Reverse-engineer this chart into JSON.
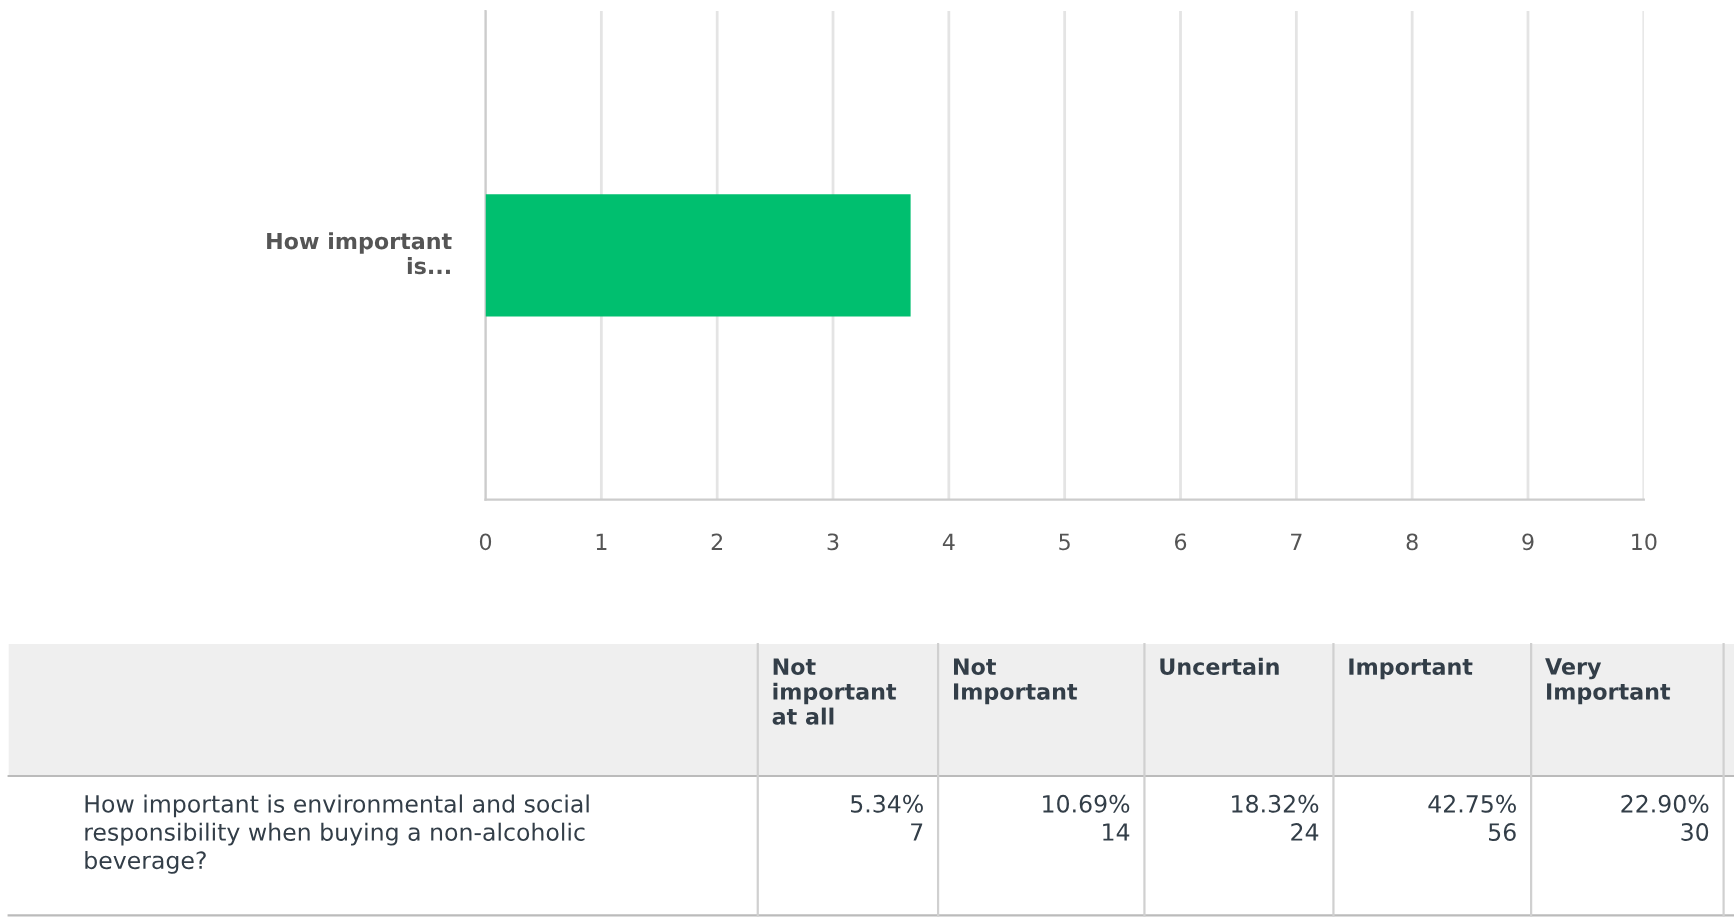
{
  "chart_data": {
    "type": "bar",
    "orientation": "horizontal",
    "categories": [
      "How important is..."
    ],
    "series": [
      {
        "color": "#00bf6f",
        "values": [
          3.67
        ]
      }
    ],
    "xlim": [
      0,
      10
    ],
    "xticks": [
      0,
      1,
      2,
      3,
      4,
      5,
      6,
      7,
      8,
      9,
      10
    ],
    "grid": "x",
    "annotations": [
      "Not important at all",
      "Not Important",
      "Uncertain",
      "Important",
      "Very Important",
      "How important is environmental and social responsibility when buying a non-alcoholic beverage?",
      "5.34%",
      "7",
      "10.69%",
      "14",
      "18.32%",
      "24",
      "42.75%",
      "56",
      "22.90%",
      "30"
    ]
  }
}
